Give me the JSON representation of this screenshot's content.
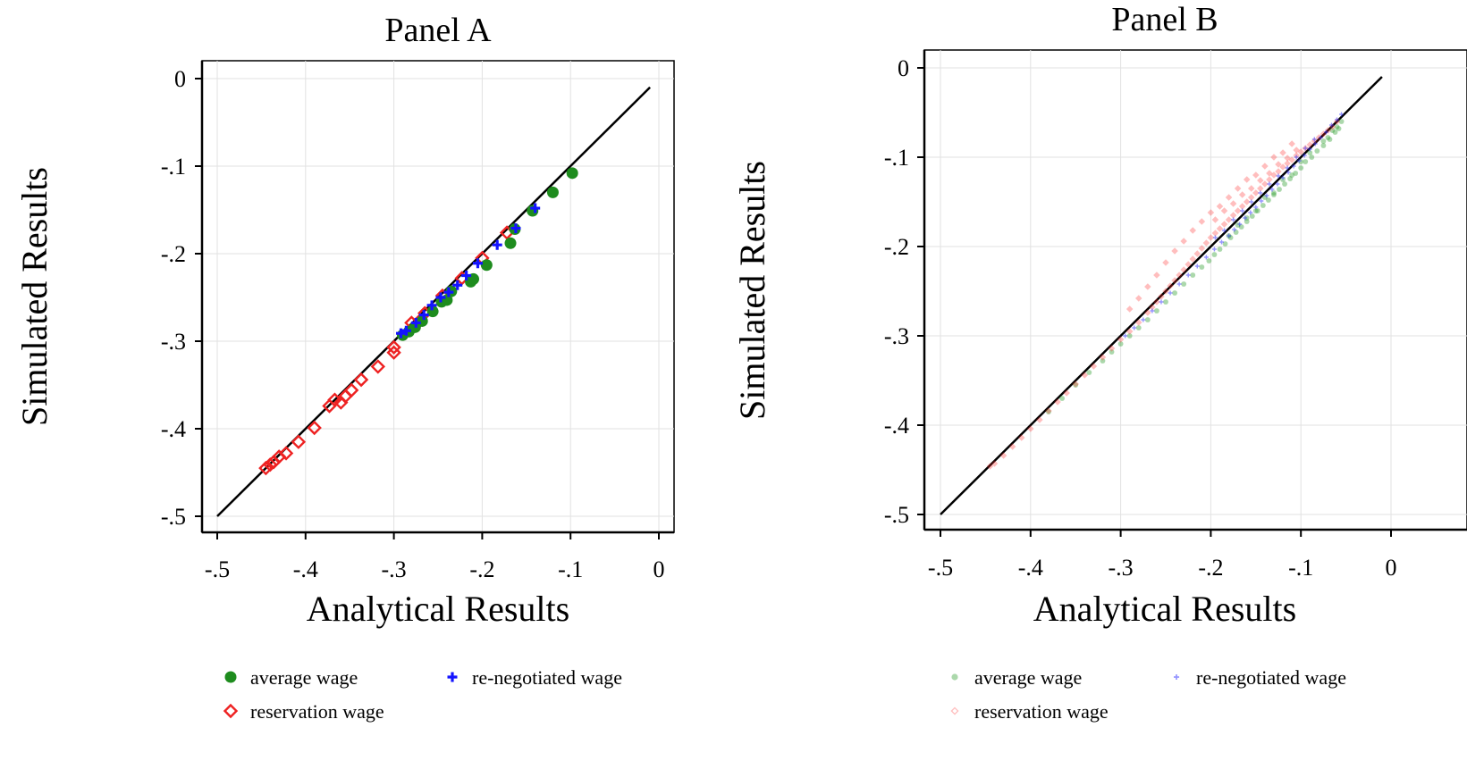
{
  "chart_data": [
    {
      "type": "scatter",
      "title": "Panel A",
      "xlabel": "Analytical Results",
      "ylabel": "Simulated Results",
      "xlim": [
        -0.5,
        0
      ],
      "ylim": [
        -0.5,
        0
      ],
      "xticks": [
        "-.5",
        "-.4",
        "-.3",
        "-.2",
        "-.1",
        "0"
      ],
      "yticks": [
        "-.5",
        "-.4",
        "-.3",
        "-.2",
        "-.1",
        "0"
      ],
      "grid": true,
      "reference_line": {
        "from": [
          -0.5,
          -0.5
        ],
        "to": [
          -0.01,
          -0.01
        ],
        "color": "#000000"
      },
      "legend_position": "bottom",
      "series": [
        {
          "name": "average wage",
          "marker": "circle",
          "color": "#1e8c1e",
          "points": [
            [
              -0.098,
              -0.108
            ],
            [
              -0.12,
              -0.13
            ],
            [
              -0.143,
              -0.151
            ],
            [
              -0.163,
              -0.172
            ],
            [
              -0.168,
              -0.188
            ],
            [
              -0.195,
              -0.213
            ],
            [
              -0.21,
              -0.229
            ],
            [
              -0.213,
              -0.232
            ],
            [
              -0.235,
              -0.243
            ],
            [
              -0.24,
              -0.253
            ],
            [
              -0.246,
              -0.255
            ],
            [
              -0.256,
              -0.266
            ],
            [
              -0.268,
              -0.277
            ],
            [
              -0.276,
              -0.284
            ],
            [
              -0.283,
              -0.289
            ],
            [
              -0.29,
              -0.293
            ]
          ]
        },
        {
          "name": "re-negotiated wage",
          "marker": "plus",
          "color": "#1414ff",
          "points": [
            [
              -0.14,
              -0.148
            ],
            [
              -0.162,
              -0.171
            ],
            [
              -0.183,
              -0.19
            ],
            [
              -0.205,
              -0.211
            ],
            [
              -0.218,
              -0.225
            ],
            [
              -0.228,
              -0.236
            ],
            [
              -0.238,
              -0.244
            ],
            [
              -0.247,
              -0.25
            ],
            [
              -0.257,
              -0.259
            ],
            [
              -0.266,
              -0.27
            ],
            [
              -0.275,
              -0.279
            ],
            [
              -0.286,
              -0.288
            ],
            [
              -0.292,
              -0.291
            ]
          ]
        },
        {
          "name": "reservation wage",
          "marker": "diamond",
          "color": "#ee2222",
          "points": [
            [
              -0.172,
              -0.176
            ],
            [
              -0.2,
              -0.205
            ],
            [
              -0.223,
              -0.228
            ],
            [
              -0.245,
              -0.248
            ],
            [
              -0.265,
              -0.268
            ],
            [
              -0.27,
              -0.276
            ],
            [
              -0.28,
              -0.279
            ],
            [
              -0.3,
              -0.307
            ],
            [
              -0.3,
              -0.313
            ],
            [
              -0.318,
              -0.329
            ],
            [
              -0.337,
              -0.344
            ],
            [
              -0.348,
              -0.356
            ],
            [
              -0.355,
              -0.363
            ],
            [
              -0.36,
              -0.37
            ],
            [
              -0.367,
              -0.367
            ],
            [
              -0.373,
              -0.374
            ],
            [
              -0.39,
              -0.399
            ],
            [
              -0.408,
              -0.415
            ],
            [
              -0.422,
              -0.428
            ],
            [
              -0.43,
              -0.432
            ],
            [
              -0.436,
              -0.438
            ],
            [
              -0.44,
              -0.441
            ],
            [
              -0.445,
              -0.445
            ]
          ]
        }
      ]
    },
    {
      "type": "scatter",
      "title": "Panel B",
      "xlabel": "Analytical Results",
      "ylabel": "Simulated Results",
      "xlim": [
        -0.5,
        0
      ],
      "ylim": [
        -0.5,
        0
      ],
      "xticks": [
        "-.5",
        "-.4",
        "-.3",
        "-.2",
        "-.1",
        "0"
      ],
      "yticks": [
        "-.5",
        "-.4",
        "-.3",
        "-.2",
        "-.1",
        "0"
      ],
      "grid": true,
      "reference_line": {
        "from": [
          -0.5,
          -0.5
        ],
        "to": [
          -0.01,
          -0.01
        ],
        "color": "#000000"
      },
      "legend_position": "bottom",
      "series": [
        {
          "name": "average wage",
          "marker": "small-dot",
          "color": "#2e9e2e",
          "opacity": 0.4,
          "points": [
            [
              -0.058,
              -0.068
            ],
            [
              -0.062,
              -0.072
            ],
            [
              -0.068,
              -0.08
            ],
            [
              -0.075,
              -0.087
            ],
            [
              -0.082,
              -0.093
            ],
            [
              -0.088,
              -0.1
            ],
            [
              -0.095,
              -0.105
            ],
            [
              -0.1,
              -0.112
            ],
            [
              -0.106,
              -0.118
            ],
            [
              -0.112,
              -0.124
            ],
            [
              -0.118,
              -0.13
            ],
            [
              -0.124,
              -0.136
            ],
            [
              -0.13,
              -0.142
            ],
            [
              -0.136,
              -0.148
            ],
            [
              -0.142,
              -0.154
            ],
            [
              -0.148,
              -0.16
            ],
            [
              -0.154,
              -0.166
            ],
            [
              -0.16,
              -0.172
            ],
            [
              -0.166,
              -0.178
            ],
            [
              -0.172,
              -0.184
            ],
            [
              -0.178,
              -0.19
            ],
            [
              -0.184,
              -0.197
            ],
            [
              -0.19,
              -0.203
            ],
            [
              -0.196,
              -0.209
            ],
            [
              -0.202,
              -0.216
            ],
            [
              -0.21,
              -0.223
            ],
            [
              -0.22,
              -0.232
            ],
            [
              -0.23,
              -0.242
            ],
            [
              -0.24,
              -0.252
            ],
            [
              -0.25,
              -0.262
            ],
            [
              -0.26,
              -0.272
            ],
            [
              -0.27,
              -0.282
            ],
            [
              -0.28,
              -0.291
            ],
            [
              -0.29,
              -0.3
            ],
            [
              -0.3,
              -0.309
            ],
            [
              -0.31,
              -0.318
            ],
            [
              -0.32,
              -0.328
            ],
            [
              -0.335,
              -0.341
            ],
            [
              -0.35,
              -0.355
            ],
            [
              -0.365,
              -0.37
            ],
            [
              -0.38,
              -0.385
            ],
            [
              -0.09,
              -0.095
            ],
            [
              -0.1,
              -0.105
            ],
            [
              -0.11,
              -0.12
            ],
            [
              -0.12,
              -0.125
            ],
            [
              -0.13,
              -0.14
            ],
            [
              -0.14,
              -0.145
            ],
            [
              -0.15,
              -0.16
            ],
            [
              -0.16,
              -0.168
            ],
            [
              -0.17,
              -0.176
            ],
            [
              -0.18,
              -0.188
            ],
            [
              -0.075,
              -0.082
            ],
            [
              -0.07,
              -0.078
            ],
            [
              -0.065,
              -0.07
            ],
            [
              -0.06,
              -0.066
            ],
            [
              -0.055,
              -0.06
            ]
          ]
        },
        {
          "name": "re-negotiated wage",
          "marker": "small-plus",
          "color": "#3030ff",
          "opacity": 0.5,
          "points": [
            [
              -0.055,
              -0.052
            ],
            [
              -0.06,
              -0.058
            ],
            [
              -0.066,
              -0.064
            ],
            [
              -0.072,
              -0.072
            ],
            [
              -0.078,
              -0.078
            ],
            [
              -0.084,
              -0.085
            ],
            [
              -0.09,
              -0.091
            ],
            [
              -0.096,
              -0.098
            ],
            [
              -0.102,
              -0.104
            ],
            [
              -0.108,
              -0.11
            ],
            [
              -0.114,
              -0.117
            ],
            [
              -0.12,
              -0.123
            ],
            [
              -0.126,
              -0.13
            ],
            [
              -0.132,
              -0.136
            ],
            [
              -0.138,
              -0.143
            ],
            [
              -0.144,
              -0.149
            ],
            [
              -0.15,
              -0.156
            ],
            [
              -0.156,
              -0.162
            ],
            [
              -0.162,
              -0.168
            ],
            [
              -0.168,
              -0.175
            ],
            [
              -0.174,
              -0.181
            ],
            [
              -0.18,
              -0.188
            ],
            [
              -0.188,
              -0.195
            ],
            [
              -0.196,
              -0.203
            ],
            [
              -0.205,
              -0.212
            ],
            [
              -0.215,
              -0.222
            ],
            [
              -0.225,
              -0.232
            ],
            [
              -0.235,
              -0.242
            ],
            [
              -0.245,
              -0.252
            ],
            [
              -0.255,
              -0.262
            ],
            [
              -0.265,
              -0.272
            ],
            [
              -0.275,
              -0.282
            ],
            [
              -0.285,
              -0.291
            ],
            [
              -0.295,
              -0.3
            ],
            [
              -0.085,
              -0.08
            ],
            [
              -0.095,
              -0.09
            ],
            [
              -0.105,
              -0.1
            ],
            [
              -0.115,
              -0.112
            ],
            [
              -0.125,
              -0.121
            ],
            [
              -0.135,
              -0.13
            ],
            [
              -0.145,
              -0.14
            ],
            [
              -0.155,
              -0.15
            ],
            [
              -0.165,
              -0.16
            ],
            [
              -0.175,
              -0.17
            ],
            [
              -0.185,
              -0.182
            ],
            [
              -0.195,
              -0.19
            ]
          ]
        },
        {
          "name": "reservation wage",
          "marker": "small-diamond",
          "color": "#ff2a2a",
          "opacity": 0.3,
          "points": [
            [
              -0.06,
              -0.06
            ],
            [
              -0.065,
              -0.066
            ],
            [
              -0.07,
              -0.07
            ],
            [
              -0.075,
              -0.074
            ],
            [
              -0.08,
              -0.078
            ],
            [
              -0.085,
              -0.082
            ],
            [
              -0.09,
              -0.086
            ],
            [
              -0.095,
              -0.09
            ],
            [
              -0.1,
              -0.094
            ],
            [
              -0.105,
              -0.098
            ],
            [
              -0.11,
              -0.103
            ],
            [
              -0.115,
              -0.107
            ],
            [
              -0.12,
              -0.111
            ],
            [
              -0.125,
              -0.116
            ],
            [
              -0.13,
              -0.12
            ],
            [
              -0.135,
              -0.125
            ],
            [
              -0.14,
              -0.13
            ],
            [
              -0.145,
              -0.135
            ],
            [
              -0.15,
              -0.14
            ],
            [
              -0.155,
              -0.145
            ],
            [
              -0.16,
              -0.15
            ],
            [
              -0.165,
              -0.155
            ],
            [
              -0.17,
              -0.16
            ],
            [
              -0.175,
              -0.165
            ],
            [
              -0.18,
              -0.17
            ],
            [
              -0.185,
              -0.175
            ],
            [
              -0.19,
              -0.18
            ],
            [
              -0.195,
              -0.185
            ],
            [
              -0.2,
              -0.19
            ],
            [
              -0.205,
              -0.196
            ],
            [
              -0.21,
              -0.202
            ],
            [
              -0.215,
              -0.208
            ],
            [
              -0.22,
              -0.214
            ],
            [
              -0.225,
              -0.22
            ],
            [
              -0.23,
              -0.226
            ],
            [
              -0.235,
              -0.232
            ],
            [
              -0.24,
              -0.238
            ],
            [
              -0.245,
              -0.244
            ],
            [
              -0.25,
              -0.25
            ],
            [
              -0.255,
              -0.256
            ],
            [
              -0.26,
              -0.262
            ],
            [
              -0.265,
              -0.268
            ],
            [
              -0.27,
              -0.274
            ],
            [
              -0.28,
              -0.285
            ],
            [
              -0.29,
              -0.295
            ],
            [
              -0.3,
              -0.304
            ],
            [
              -0.31,
              -0.314
            ],
            [
              -0.32,
              -0.324
            ],
            [
              -0.33,
              -0.334
            ],
            [
              -0.34,
              -0.344
            ],
            [
              -0.35,
              -0.354
            ],
            [
              -0.36,
              -0.364
            ],
            [
              -0.37,
              -0.374
            ],
            [
              -0.38,
              -0.384
            ],
            [
              -0.39,
              -0.394
            ],
            [
              -0.4,
              -0.404
            ],
            [
              -0.41,
              -0.414
            ],
            [
              -0.42,
              -0.424
            ],
            [
              -0.43,
              -0.434
            ],
            [
              -0.44,
              -0.443
            ],
            [
              -0.445,
              -0.446
            ],
            [
              -0.11,
              -0.085
            ],
            [
              -0.12,
              -0.095
            ],
            [
              -0.13,
              -0.1
            ],
            [
              -0.14,
              -0.11
            ],
            [
              -0.15,
              -0.12
            ],
            [
              -0.16,
              -0.125
            ],
            [
              -0.17,
              -0.135
            ],
            [
              -0.18,
              -0.145
            ],
            [
              -0.19,
              -0.155
            ],
            [
              -0.2,
              -0.162
            ],
            [
              -0.21,
              -0.172
            ],
            [
              -0.22,
              -0.182
            ],
            [
              -0.23,
              -0.194
            ],
            [
              -0.24,
              -0.205
            ],
            [
              -0.25,
              -0.218
            ],
            [
              -0.26,
              -0.232
            ],
            [
              -0.27,
              -0.245
            ],
            [
              -0.28,
              -0.258
            ],
            [
              -0.29,
              -0.27
            ],
            [
              -0.105,
              -0.092
            ],
            [
              -0.115,
              -0.101
            ],
            [
              -0.125,
              -0.108
            ],
            [
              -0.135,
              -0.118
            ],
            [
              -0.145,
              -0.126
            ],
            [
              -0.155,
              -0.135
            ],
            [
              -0.165,
              -0.142
            ],
            [
              -0.175,
              -0.152
            ],
            [
              -0.185,
              -0.16
            ],
            [
              -0.195,
              -0.17
            ]
          ]
        }
      ]
    }
  ]
}
